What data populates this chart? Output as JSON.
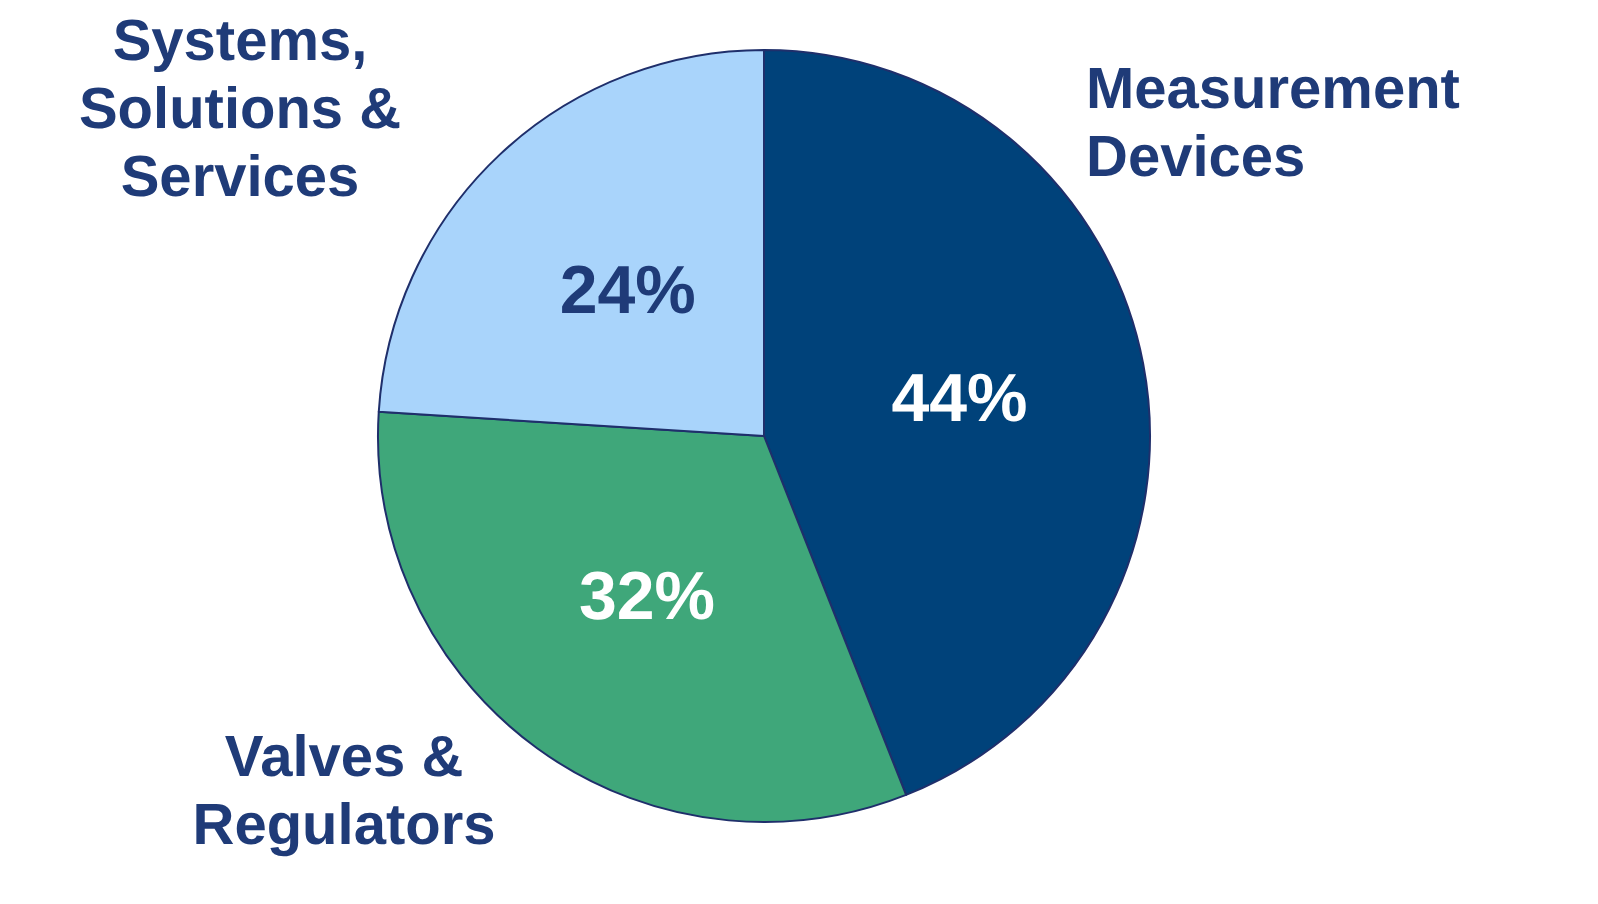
{
  "chart_data": {
    "type": "pie",
    "categories": [
      "Measurement\nDevices",
      "Valves &\nRegulators",
      "Systems,\nSolutions &\nServices"
    ],
    "values": [
      44,
      32,
      24
    ],
    "colors": [
      "#00427a",
      "#3fa77a",
      "#a9d4fb"
    ],
    "value_labels": [
      "44%",
      "32%",
      "24%"
    ],
    "legend": false
  }
}
